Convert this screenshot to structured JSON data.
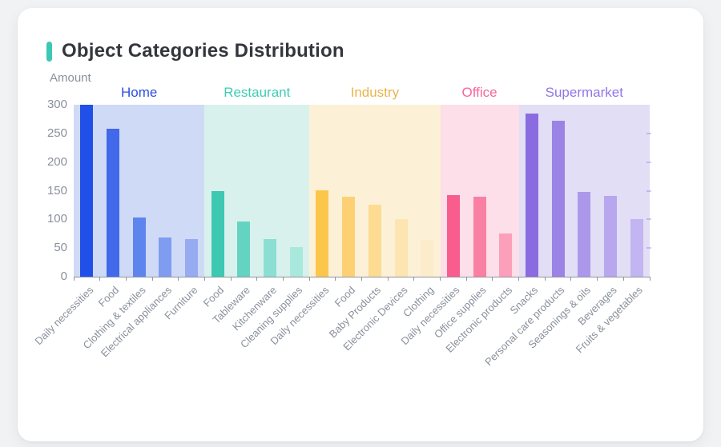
{
  "card": {
    "title": "Object Categories Distribution",
    "y_axis_title": "Amount"
  },
  "colors": {
    "page_background": "#f0f2f3",
    "card_background": "#ffffff",
    "title_accent": "#3bc9b3",
    "title_text": "#33373d",
    "axis_text": "#8a909b",
    "axis_line": "#8f959e"
  },
  "chart_data": {
    "type": "bar",
    "title": "Object Categories Distribution",
    "xlabel": "",
    "ylabel": "Amount",
    "ylim": [
      0,
      300
    ],
    "yticks": [
      0,
      50,
      100,
      150,
      200,
      250,
      300
    ],
    "grid": false,
    "legend_position": "top-inline-group-labels",
    "groups": [
      {
        "name": "Home",
        "label_color": "#2b50e0",
        "band_color": "#cfdaf7",
        "categories": [
          "Daily necessities",
          "Food",
          "Clothing & textiles",
          "Electrical appliances",
          "Furniture"
        ],
        "values": [
          300,
          258,
          103,
          69,
          65
        ],
        "bar_colors": [
          "#2150e8",
          "#4269e9",
          "#5e84ed",
          "#7f9cf0",
          "#97abf2"
        ]
      },
      {
        "name": "Restaurant",
        "label_color": "#41cbb4",
        "band_color": "#d9f1ed",
        "categories": [
          "Food",
          "Tableware",
          "Kitchenware",
          "Cleaning supplies"
        ],
        "values": [
          149,
          97,
          66,
          51
        ],
        "bar_colors": [
          "#3dc8b1",
          "#65d3c2",
          "#8adfd2",
          "#a9e8dd"
        ]
      },
      {
        "name": "Industry",
        "label_color": "#e9b44c",
        "band_color": "#fcf1d6",
        "categories": [
          "Daily necessities",
          "Food",
          "Baby Products",
          "Electronic Devices",
          "Clothing"
        ],
        "values": [
          151,
          139,
          126,
          100,
          64
        ],
        "bar_colors": [
          "#fcc64b",
          "#fdd173",
          "#fddb92",
          "#fde5b2",
          "#fceccb"
        ]
      },
      {
        "name": "Office",
        "label_color": "#f8659a",
        "band_color": "#fcdfe9",
        "categories": [
          "Daily necessities",
          "Office supplies",
          "Electronic products"
        ],
        "values": [
          143,
          139,
          76
        ],
        "bar_colors": [
          "#f95d8d",
          "#fa80a3",
          "#fb9fba"
        ]
      },
      {
        "name": "Supermarket",
        "label_color": "#8f77e8",
        "band_color": "#e2def6",
        "categories": [
          "Snacks",
          "Personal care products",
          "Seasonings & oils",
          "Beverages",
          "Fruits & vegetables"
        ],
        "values": [
          285,
          272,
          148,
          141,
          101
        ],
        "bar_colors": [
          "#8a6ce0",
          "#9b83e6",
          "#ac98ea",
          "#b8a7ee",
          "#c3b5f1"
        ]
      }
    ]
  }
}
